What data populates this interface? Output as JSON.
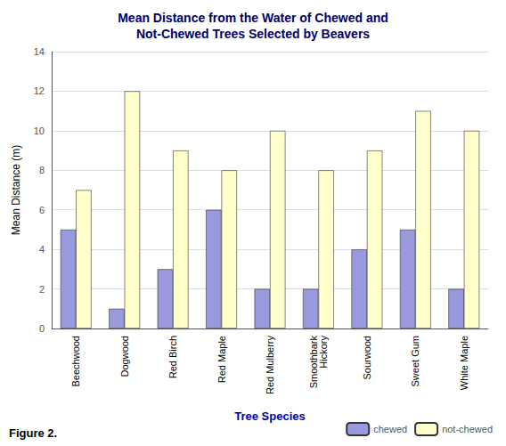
{
  "chart_data": {
    "type": "bar",
    "title": "Mean Distance from the Water of Chewed and\nNot-Chewed Trees Selected by Beavers",
    "xlabel": "Tree Species",
    "ylabel": "Mean Distance (m)",
    "categories": [
      "Beechwood",
      "Dogwood",
      "Red Birch",
      "Red Maple",
      "Red Mulberry",
      "Smoothbark\nHickory",
      "Sourwood",
      "Sweet Gum",
      "White Maple"
    ],
    "series": [
      {
        "name": "chewed",
        "color": "#9999dd",
        "values": [
          5,
          1,
          3,
          6,
          2,
          2,
          4,
          5,
          2
        ]
      },
      {
        "name": "not-chewed",
        "color": "#ffffcc",
        "values": [
          7,
          12,
          9,
          8,
          10,
          8,
          9,
          11,
          10
        ]
      }
    ],
    "ylim": [
      0,
      14
    ],
    "yticks": [
      0,
      2,
      4,
      6,
      8,
      10,
      12,
      14
    ],
    "grid": true,
    "legend": "lower right",
    "annotations": [
      "Figure 2."
    ]
  }
}
